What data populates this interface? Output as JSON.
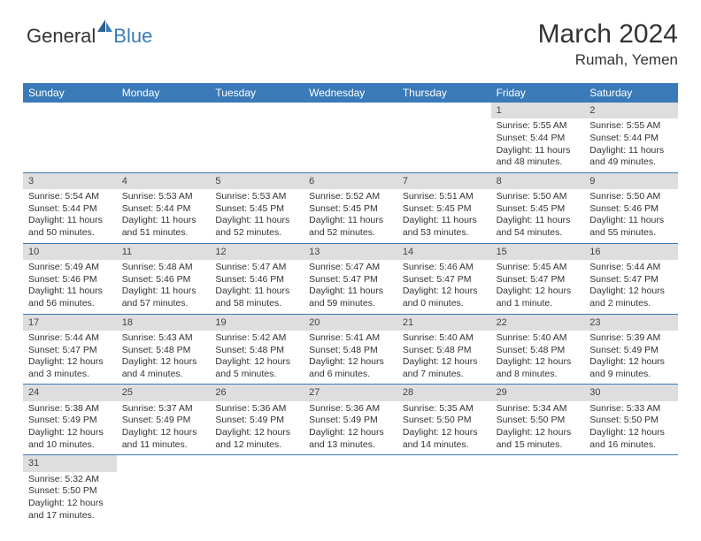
{
  "logo": {
    "text1": "General",
    "text2": "Blue"
  },
  "title": "March 2024",
  "location": "Rumah, Yemen",
  "colors": {
    "header_bg": "#3a7ab8",
    "header_text": "#ffffff",
    "daynum_bg": "#dedede",
    "week_border": "#3a7ab8",
    "text": "#333333"
  },
  "day_headers": [
    "Sunday",
    "Monday",
    "Tuesday",
    "Wednesday",
    "Thursday",
    "Friday",
    "Saturday"
  ],
  "weeks": [
    [
      null,
      null,
      null,
      null,
      null,
      {
        "d": "1",
        "sr": "Sunrise: 5:55 AM",
        "ss": "Sunset: 5:44 PM",
        "dl1": "Daylight: 11 hours",
        "dl2": "and 48 minutes."
      },
      {
        "d": "2",
        "sr": "Sunrise: 5:55 AM",
        "ss": "Sunset: 5:44 PM",
        "dl1": "Daylight: 11 hours",
        "dl2": "and 49 minutes."
      }
    ],
    [
      {
        "d": "3",
        "sr": "Sunrise: 5:54 AM",
        "ss": "Sunset: 5:44 PM",
        "dl1": "Daylight: 11 hours",
        "dl2": "and 50 minutes."
      },
      {
        "d": "4",
        "sr": "Sunrise: 5:53 AM",
        "ss": "Sunset: 5:44 PM",
        "dl1": "Daylight: 11 hours",
        "dl2": "and 51 minutes."
      },
      {
        "d": "5",
        "sr": "Sunrise: 5:53 AM",
        "ss": "Sunset: 5:45 PM",
        "dl1": "Daylight: 11 hours",
        "dl2": "and 52 minutes."
      },
      {
        "d": "6",
        "sr": "Sunrise: 5:52 AM",
        "ss": "Sunset: 5:45 PM",
        "dl1": "Daylight: 11 hours",
        "dl2": "and 52 minutes."
      },
      {
        "d": "7",
        "sr": "Sunrise: 5:51 AM",
        "ss": "Sunset: 5:45 PM",
        "dl1": "Daylight: 11 hours",
        "dl2": "and 53 minutes."
      },
      {
        "d": "8",
        "sr": "Sunrise: 5:50 AM",
        "ss": "Sunset: 5:45 PM",
        "dl1": "Daylight: 11 hours",
        "dl2": "and 54 minutes."
      },
      {
        "d": "9",
        "sr": "Sunrise: 5:50 AM",
        "ss": "Sunset: 5:46 PM",
        "dl1": "Daylight: 11 hours",
        "dl2": "and 55 minutes."
      }
    ],
    [
      {
        "d": "10",
        "sr": "Sunrise: 5:49 AM",
        "ss": "Sunset: 5:46 PM",
        "dl1": "Daylight: 11 hours",
        "dl2": "and 56 minutes."
      },
      {
        "d": "11",
        "sr": "Sunrise: 5:48 AM",
        "ss": "Sunset: 5:46 PM",
        "dl1": "Daylight: 11 hours",
        "dl2": "and 57 minutes."
      },
      {
        "d": "12",
        "sr": "Sunrise: 5:47 AM",
        "ss": "Sunset: 5:46 PM",
        "dl1": "Daylight: 11 hours",
        "dl2": "and 58 minutes."
      },
      {
        "d": "13",
        "sr": "Sunrise: 5:47 AM",
        "ss": "Sunset: 5:47 PM",
        "dl1": "Daylight: 11 hours",
        "dl2": "and 59 minutes."
      },
      {
        "d": "14",
        "sr": "Sunrise: 5:46 AM",
        "ss": "Sunset: 5:47 PM",
        "dl1": "Daylight: 12 hours",
        "dl2": "and 0 minutes."
      },
      {
        "d": "15",
        "sr": "Sunrise: 5:45 AM",
        "ss": "Sunset: 5:47 PM",
        "dl1": "Daylight: 12 hours",
        "dl2": "and 1 minute."
      },
      {
        "d": "16",
        "sr": "Sunrise: 5:44 AM",
        "ss": "Sunset: 5:47 PM",
        "dl1": "Daylight: 12 hours",
        "dl2": "and 2 minutes."
      }
    ],
    [
      {
        "d": "17",
        "sr": "Sunrise: 5:44 AM",
        "ss": "Sunset: 5:47 PM",
        "dl1": "Daylight: 12 hours",
        "dl2": "and 3 minutes."
      },
      {
        "d": "18",
        "sr": "Sunrise: 5:43 AM",
        "ss": "Sunset: 5:48 PM",
        "dl1": "Daylight: 12 hours",
        "dl2": "and 4 minutes."
      },
      {
        "d": "19",
        "sr": "Sunrise: 5:42 AM",
        "ss": "Sunset: 5:48 PM",
        "dl1": "Daylight: 12 hours",
        "dl2": "and 5 minutes."
      },
      {
        "d": "20",
        "sr": "Sunrise: 5:41 AM",
        "ss": "Sunset: 5:48 PM",
        "dl1": "Daylight: 12 hours",
        "dl2": "and 6 minutes."
      },
      {
        "d": "21",
        "sr": "Sunrise: 5:40 AM",
        "ss": "Sunset: 5:48 PM",
        "dl1": "Daylight: 12 hours",
        "dl2": "and 7 minutes."
      },
      {
        "d": "22",
        "sr": "Sunrise: 5:40 AM",
        "ss": "Sunset: 5:48 PM",
        "dl1": "Daylight: 12 hours",
        "dl2": "and 8 minutes."
      },
      {
        "d": "23",
        "sr": "Sunrise: 5:39 AM",
        "ss": "Sunset: 5:49 PM",
        "dl1": "Daylight: 12 hours",
        "dl2": "and 9 minutes."
      }
    ],
    [
      {
        "d": "24",
        "sr": "Sunrise: 5:38 AM",
        "ss": "Sunset: 5:49 PM",
        "dl1": "Daylight: 12 hours",
        "dl2": "and 10 minutes."
      },
      {
        "d": "25",
        "sr": "Sunrise: 5:37 AM",
        "ss": "Sunset: 5:49 PM",
        "dl1": "Daylight: 12 hours",
        "dl2": "and 11 minutes."
      },
      {
        "d": "26",
        "sr": "Sunrise: 5:36 AM",
        "ss": "Sunset: 5:49 PM",
        "dl1": "Daylight: 12 hours",
        "dl2": "and 12 minutes."
      },
      {
        "d": "27",
        "sr": "Sunrise: 5:36 AM",
        "ss": "Sunset: 5:49 PM",
        "dl1": "Daylight: 12 hours",
        "dl2": "and 13 minutes."
      },
      {
        "d": "28",
        "sr": "Sunrise: 5:35 AM",
        "ss": "Sunset: 5:50 PM",
        "dl1": "Daylight: 12 hours",
        "dl2": "and 14 minutes."
      },
      {
        "d": "29",
        "sr": "Sunrise: 5:34 AM",
        "ss": "Sunset: 5:50 PM",
        "dl1": "Daylight: 12 hours",
        "dl2": "and 15 minutes."
      },
      {
        "d": "30",
        "sr": "Sunrise: 5:33 AM",
        "ss": "Sunset: 5:50 PM",
        "dl1": "Daylight: 12 hours",
        "dl2": "and 16 minutes."
      }
    ],
    [
      {
        "d": "31",
        "sr": "Sunrise: 5:32 AM",
        "ss": "Sunset: 5:50 PM",
        "dl1": "Daylight: 12 hours",
        "dl2": "and 17 minutes."
      },
      null,
      null,
      null,
      null,
      null,
      null
    ]
  ]
}
